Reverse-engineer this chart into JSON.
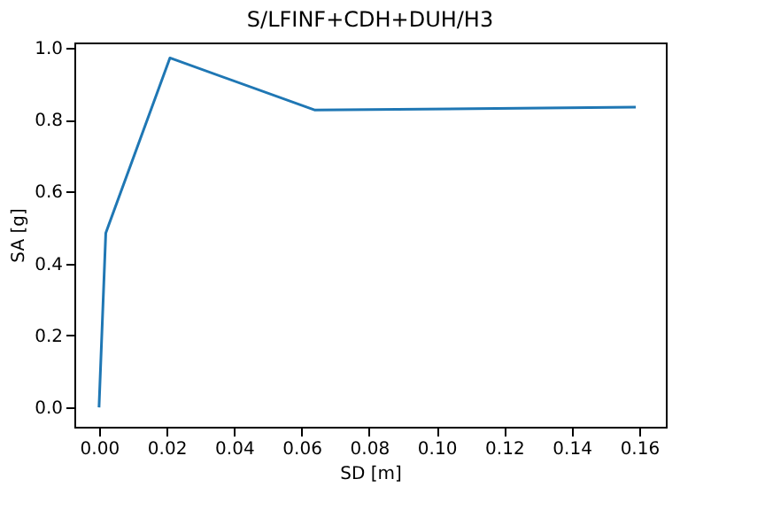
{
  "chart_data": {
    "type": "line",
    "title": "S/LFINF+CDH+DUH/H3",
    "xlabel": "SD [m]",
    "ylabel": "SA [g]",
    "x": [
      0,
      0.002,
      0.021,
      0.064,
      0.159
    ],
    "series": [
      {
        "color": "#1f77b4",
        "values": [
          0,
          0.485,
          0.972,
          0.827,
          0.835
        ]
      }
    ],
    "xlim": [
      -0.0073,
      0.1679
    ],
    "ylim": [
      -0.054,
      1.015
    ],
    "xticks": [
      {
        "value": 0,
        "label": "0.00"
      },
      {
        "value": 0.02,
        "label": "0.02"
      },
      {
        "value": 0.04,
        "label": "0.04"
      },
      {
        "value": 0.06,
        "label": "0.06"
      },
      {
        "value": 0.08,
        "label": "0.08"
      },
      {
        "value": 0.1,
        "label": "0.10"
      },
      {
        "value": 0.12,
        "label": "0.12"
      },
      {
        "value": 0.14,
        "label": "0.14"
      },
      {
        "value": 0.16,
        "label": "0.16"
      }
    ],
    "yticks": [
      {
        "value": 0,
        "label": "0.0"
      },
      {
        "value": 0.2,
        "label": "0.2"
      },
      {
        "value": 0.4,
        "label": "0.4"
      },
      {
        "value": 0.6,
        "label": "0.6"
      },
      {
        "value": 0.8,
        "label": "0.8"
      },
      {
        "value": 1,
        "label": "1.0"
      }
    ],
    "grid": false,
    "marker": "none",
    "line_style": "solid"
  }
}
